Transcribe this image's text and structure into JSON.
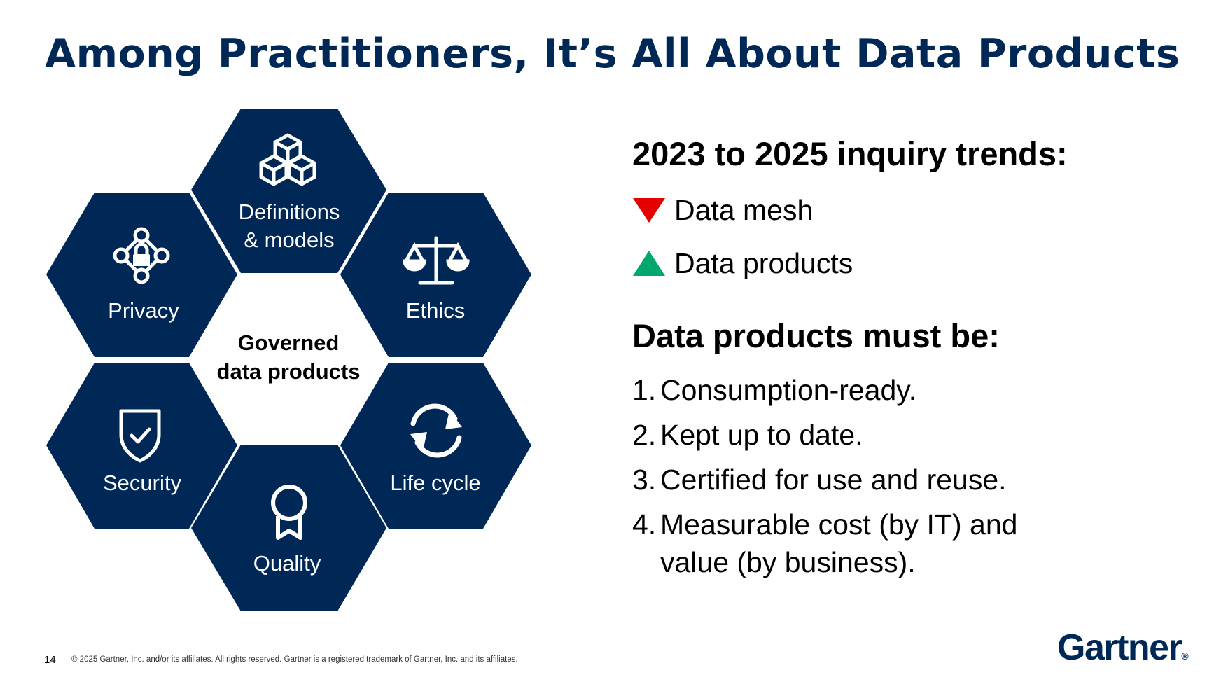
{
  "slide": {
    "title": "Among Practitioners, It’s All About Data Products",
    "page_number": "14",
    "copyright": "© 2025 Gartner, Inc. and/or its affiliates. All rights reserved. Gartner is a registered trademark of Gartner, Inc. and its affiliates.",
    "logo": "Gartner",
    "logo_mark": "®"
  },
  "diagram": {
    "center_line1": "Governed",
    "center_line2": "data products",
    "hexagons": [
      {
        "label_line1": "Definitions",
        "label_line2": "& models",
        "icon": "cubes-icon"
      },
      {
        "label": "Privacy",
        "icon": "privacy-lock-icon"
      },
      {
        "label": "Ethics",
        "icon": "scales-icon"
      },
      {
        "label": "Security",
        "icon": "shield-check-icon"
      },
      {
        "label": "Life cycle",
        "icon": "cycle-arrows-icon"
      },
      {
        "label": "Quality",
        "icon": "award-ribbon-icon"
      }
    ],
    "color": "#002856"
  },
  "trends": {
    "heading": "2023 to 2025 inquiry trends:",
    "items": [
      {
        "label": "Data mesh",
        "direction": "down",
        "color": "#e50000"
      },
      {
        "label": "Data products",
        "direction": "up",
        "color": "#00a86b"
      }
    ]
  },
  "requirements": {
    "heading": "Data products must be:",
    "items": [
      {
        "num": "1.",
        "text": "Consumption-ready."
      },
      {
        "num": "2.",
        "text": "Kept up to date."
      },
      {
        "num": "3.",
        "text": "Certified for use and reuse."
      },
      {
        "num": "4.",
        "text": "Measurable cost (by IT) and value (by business)."
      }
    ]
  }
}
